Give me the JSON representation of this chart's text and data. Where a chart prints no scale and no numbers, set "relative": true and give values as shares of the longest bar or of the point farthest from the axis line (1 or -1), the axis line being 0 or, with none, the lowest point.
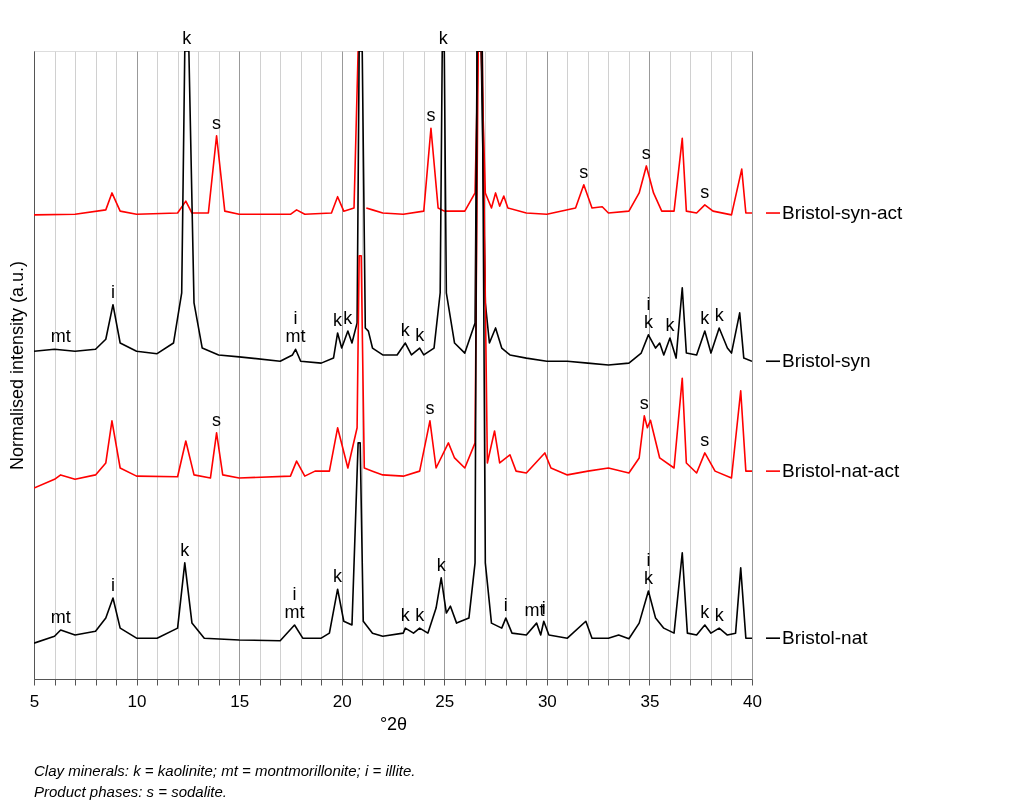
{
  "chart_data": {
    "type": "line",
    "relative": true,
    "xlabel": "°2θ",
    "ylabel": "Normalised intensity (a.u.)",
    "xlim": [
      5,
      40
    ],
    "xticks": [
      5,
      {
        "value": 6,
        "label": null
      },
      {
        "value": 7,
        "label": null
      },
      {
        "value": 8,
        "label": null
      },
      {
        "value": 9,
        "label": null
      },
      10,
      {
        "value": 11,
        "label": null
      },
      {
        "value": 12,
        "label": null
      },
      {
        "value": 13,
        "label": null
      },
      {
        "value": 14,
        "label": null
      },
      15,
      {
        "value": 16,
        "label": null
      },
      {
        "value": 17,
        "label": null
      },
      {
        "value": 18,
        "label": null
      },
      {
        "value": 19,
        "label": null
      },
      20,
      {
        "value": 21,
        "label": null
      },
      {
        "value": 22,
        "label": null
      },
      {
        "value": 23,
        "label": null
      },
      {
        "value": 24,
        "label": null
      },
      25,
      {
        "value": 26,
        "label": null
      },
      {
        "value": 27,
        "label": null
      },
      {
        "value": 28,
        "label": null
      },
      {
        "value": 29,
        "label": null
      },
      30,
      {
        "value": 31,
        "label": null
      },
      {
        "value": 32,
        "label": null
      },
      {
        "value": 33,
        "label": null
      },
      {
        "value": 34,
        "label": null
      },
      35,
      {
        "value": 36,
        "label": null
      },
      {
        "value": 37,
        "label": null
      },
      {
        "value": 38,
        "label": null
      },
      {
        "value": 39,
        "label": null
      },
      40
    ],
    "grid": "x",
    "legend": "right",
    "marker": "none",
    "line_style": "solid",
    "series": [
      {
        "name": "Bristol-syn-act",
        "color": "#ff0000",
        "x": [
          5,
          7,
          8.5,
          8.8,
          9.2,
          10,
          12,
          12.4,
          12.7,
          13.5,
          13.9,
          14.3,
          15,
          17.5,
          17.8,
          18.2,
          19.5,
          19.8,
          20.1,
          20.6,
          20.8,
          21.0,
          21.2,
          21.5,
          22,
          23,
          24,
          24.35,
          24.7,
          25,
          26,
          26.5,
          26.65,
          26.8,
          27.0,
          27.3,
          27.5,
          27.7,
          27.9,
          28.1,
          29,
          30,
          31.4,
          31.8,
          32.2,
          32.7,
          33,
          34,
          34.5,
          34.85,
          35.2,
          35.6,
          36.2,
          36.6,
          36.8,
          37.3,
          37.7,
          38.1,
          39,
          39.5,
          39.7,
          40
        ],
        "values": [
          0.739,
          0.74,
          0.747,
          0.774,
          0.745,
          0.74,
          0.742,
          0.761,
          0.742,
          0.742,
          0.865,
          0.745,
          0.74,
          0.74,
          0.747,
          0.74,
          0.742,
          0.768,
          0.745,
          0.75,
          1,
          null,
          0.75,
          0.747,
          0.742,
          0.74,
          0.745,
          0.877,
          0.75,
          0.745,
          0.745,
          0.774,
          1,
          1,
          0.774,
          0.75,
          0.774,
          0.753,
          0.769,
          0.75,
          0.742,
          0.74,
          0.75,
          0.787,
          0.75,
          0.752,
          0.742,
          0.745,
          0.774,
          0.817,
          0.774,
          0.745,
          0.745,
          0.861,
          0.745,
          0.742,
          0.755,
          0.745,
          0.739,
          0.812,
          0.742,
          0.742
        ]
      },
      {
        "name": "Bristol-syn",
        "color": "#000000",
        "x": [
          5,
          6,
          7,
          8,
          8.5,
          8.85,
          9.2,
          10,
          11,
          11.8,
          12.2,
          12.35,
          12.55,
          12.8,
          13.2,
          14,
          15,
          17,
          17.6,
          17.75,
          18,
          19,
          19.6,
          19.8,
          20.0,
          20.3,
          20.5,
          20.75,
          20.85,
          21.0,
          21.15,
          21.3,
          21.5,
          22,
          22.7,
          23.1,
          23.4,
          23.8,
          24.0,
          24.5,
          24.8,
          24.9,
          25.0,
          25.1,
          25.5,
          26,
          26.5,
          26.6,
          26.8,
          27.0,
          27.2,
          27.5,
          27.8,
          28.2,
          29,
          30,
          31,
          32,
          33,
          34,
          34.6,
          34.95,
          35.3,
          35.5,
          35.7,
          36,
          36.3,
          36.6,
          36.8,
          37.3,
          37.7,
          38.0,
          38.4,
          38.8,
          39.0,
          39.4,
          39.6,
          40
        ],
        "values": [
          0.522,
          0.525,
          0.522,
          0.525,
          0.541,
          0.596,
          0.535,
          0.522,
          0.518,
          0.535,
          0.615,
          1,
          1,
          0.599,
          0.527,
          0.516,
          0.513,
          0.506,
          0.516,
          0.525,
          0.506,
          0.503,
          0.511,
          0.551,
          0.527,
          0.554,
          0.535,
          0.567,
          1,
          1,
          0.559,
          0.554,
          0.527,
          0.516,
          0.516,
          0.535,
          0.516,
          0.527,
          0.516,
          0.527,
          0.615,
          1,
          1,
          0.615,
          0.535,
          0.519,
          0.567,
          1,
          1,
          0.599,
          0.535,
          0.559,
          0.527,
          0.516,
          0.511,
          0.506,
          0.506,
          0.503,
          0.5,
          0.503,
          0.519,
          0.548,
          0.527,
          0.535,
          0.516,
          0.543,
          0.511,
          0.623,
          0.519,
          0.516,
          0.554,
          0.519,
          0.559,
          0.527,
          0.519,
          0.583,
          0.511,
          0.506
        ]
      },
      {
        "name": "Bristol-nat-act",
        "color": "#ff0000",
        "x": [
          5,
          6,
          6.3,
          7,
          8,
          8.5,
          8.8,
          9.2,
          10,
          12,
          12.4,
          12.8,
          13.6,
          13.9,
          14.2,
          15,
          17.5,
          17.8,
          18.2,
          18.7,
          19.4,
          19.8,
          20.3,
          20.75,
          20.85,
          20.95,
          21.1,
          21.5,
          22,
          23,
          23.8,
          24.3,
          24.6,
          25.2,
          25.5,
          26,
          26.5,
          26.65,
          26.85,
          27.1,
          27.45,
          27.7,
          28.2,
          28.5,
          29,
          29.9,
          30.2,
          31,
          32,
          33,
          34,
          34.5,
          34.75,
          34.9,
          35.05,
          35.5,
          36.2,
          36.6,
          36.8,
          37.3,
          37.7,
          38.2,
          39,
          39.45,
          39.7,
          40
        ],
        "values": [
          0.304,
          0.318,
          0.325,
          0.318,
          0.325,
          0.344,
          0.411,
          0.336,
          0.323,
          0.322,
          0.379,
          0.325,
          0.32,
          0.392,
          0.325,
          0.32,
          0.323,
          0.347,
          0.323,
          0.331,
          0.331,
          0.4,
          0.336,
          0.4,
          0.674,
          0.674,
          0.336,
          0.331,
          0.325,
          0.323,
          0.331,
          0.411,
          0.336,
          0.376,
          0.352,
          0.336,
          0.376,
          1,
          1,
          0.344,
          0.395,
          0.344,
          0.357,
          0.331,
          0.328,
          0.36,
          0.336,
          0.325,
          0.331,
          0.336,
          0.328,
          0.352,
          0.419,
          0.4,
          0.412,
          0.352,
          0.336,
          0.479,
          0.344,
          0.328,
          0.36,
          0.331,
          0.32,
          0.459,
          0.331,
          0.331
        ]
      },
      {
        "name": "Bristol-nat",
        "color": "#000000",
        "x": [
          5,
          6,
          6.3,
          7,
          8,
          8.5,
          8.85,
          9.2,
          10,
          11,
          12,
          12.35,
          12.7,
          13.3,
          15,
          17,
          17.7,
          18.1,
          19,
          19.4,
          19.8,
          20.1,
          20.5,
          20.8,
          20.9,
          21.05,
          21.5,
          22,
          23,
          23.1,
          23.5,
          23.8,
          24.2,
          24.6,
          24.85,
          25.1,
          25.3,
          25.6,
          26.2,
          26.5,
          26.6,
          26.85,
          27.0,
          27.3,
          27.8,
          28.0,
          28.3,
          29,
          29.5,
          29.7,
          29.85,
          30.1,
          31,
          31.9,
          32.2,
          33,
          33.5,
          34,
          34.5,
          34.95,
          35.3,
          35.7,
          36.2,
          36.6,
          36.85,
          37.3,
          37.7,
          38.0,
          38.4,
          38.8,
          39.2,
          39.45,
          39.7,
          40
        ],
        "values": [
          0.057,
          0.068,
          0.078,
          0.07,
          0.076,
          0.097,
          0.129,
          0.081,
          0.065,
          0.065,
          0.081,
          0.185,
          0.089,
          0.065,
          0.062,
          0.061,
          0.086,
          0.065,
          0.065,
          0.073,
          0.143,
          0.092,
          0.086,
          0.376,
          0.376,
          0.092,
          0.073,
          0.068,
          0.073,
          0.081,
          0.073,
          0.081,
          0.073,
          0.113,
          0.161,
          0.105,
          0.116,
          0.089,
          0.097,
          0.185,
          1,
          1,
          0.185,
          0.089,
          0.081,
          0.097,
          0.073,
          0.07,
          0.089,
          0.07,
          0.092,
          0.07,
          0.065,
          0.092,
          0.065,
          0.065,
          0.07,
          0.064,
          0.089,
          0.14,
          0.097,
          0.081,
          0.073,
          0.201,
          0.073,
          0.07,
          0.086,
          0.073,
          0.081,
          0.07,
          0.073,
          0.177,
          0.065,
          0.065
        ]
      }
    ],
    "annotations": [
      {
        "text": "k",
        "x": 12.45,
        "y": 1
      },
      {
        "text": "k",
        "x": 24.95,
        "y": 1
      },
      {
        "text": "s",
        "x": 13.9,
        "y": 0.865
      },
      {
        "text": "s",
        "x": 24.35,
        "y": 0.877
      },
      {
        "text": "s",
        "x": 31.8,
        "y": 0.787
      },
      {
        "text": "s",
        "x": 34.85,
        "y": 0.817
      },
      {
        "text": "s",
        "x": 37.7,
        "y": 0.755
      },
      {
        "text": "mt",
        "x": 6.3,
        "y": 0.525
      },
      {
        "text": "i",
        "x": 8.85,
        "y": 0.596
      },
      {
        "text": "mt",
        "x": 17.75,
        "y": 0.525
      },
      {
        "text": "i",
        "x": 17.75,
        "y": 0.525
      },
      {
        "text": "k",
        "x": 19.8,
        "y": 0.551
      },
      {
        "text": "k",
        "x": 20.3,
        "y": 0.554
      },
      {
        "text": "k",
        "x": 23.1,
        "y": 0.535
      },
      {
        "text": "k",
        "x": 23.8,
        "y": 0.527
      },
      {
        "text": "k",
        "x": 34.95,
        "y": 0.548
      },
      {
        "text": "i",
        "x": 34.95,
        "y": 0.548
      },
      {
        "text": "k",
        "x": 36.0,
        "y": 0.543
      },
      {
        "text": "k",
        "x": 37.7,
        "y": 0.554
      },
      {
        "text": "k",
        "x": 38.4,
        "y": 0.559
      },
      {
        "text": "s",
        "x": 13.9,
        "y": 0.392
      },
      {
        "text": "s",
        "x": 24.3,
        "y": 0.411
      },
      {
        "text": "s",
        "x": 34.75,
        "y": 0.419
      },
      {
        "text": "s",
        "x": 37.7,
        "y": 0.36
      },
      {
        "text": "mt",
        "x": 6.3,
        "y": 0.078
      },
      {
        "text": "i",
        "x": 8.85,
        "y": 0.129
      },
      {
        "text": "k",
        "x": 12.35,
        "y": 0.185
      },
      {
        "text": "mt",
        "x": 17.7,
        "y": 0.086
      },
      {
        "text": "i",
        "x": 17.7,
        "y": 0.086
      },
      {
        "text": "k",
        "x": 19.8,
        "y": 0.143
      },
      {
        "text": "k",
        "x": 23.1,
        "y": 0.081
      },
      {
        "text": "k",
        "x": 23.8,
        "y": 0.081
      },
      {
        "text": "k",
        "x": 24.85,
        "y": 0.161
      },
      {
        "text": "i",
        "x": 28.0,
        "y": 0.097
      },
      {
        "text": "mt",
        "x": 29.4,
        "y": 0.089
      },
      {
        "text": "i",
        "x": 29.85,
        "y": 0.092
      },
      {
        "text": "k",
        "x": 34.95,
        "y": 0.14
      },
      {
        "text": "i",
        "x": 34.95,
        "y": 0.14
      },
      {
        "text": "k",
        "x": 37.7,
        "y": 0.086
      },
      {
        "text": "k",
        "x": 38.4,
        "y": 0.081
      },
      "Clay minerals: k = kaolinite; mt = montmorillonite;  i = illite.",
      "Product phases: s = sodalite."
    ]
  }
}
